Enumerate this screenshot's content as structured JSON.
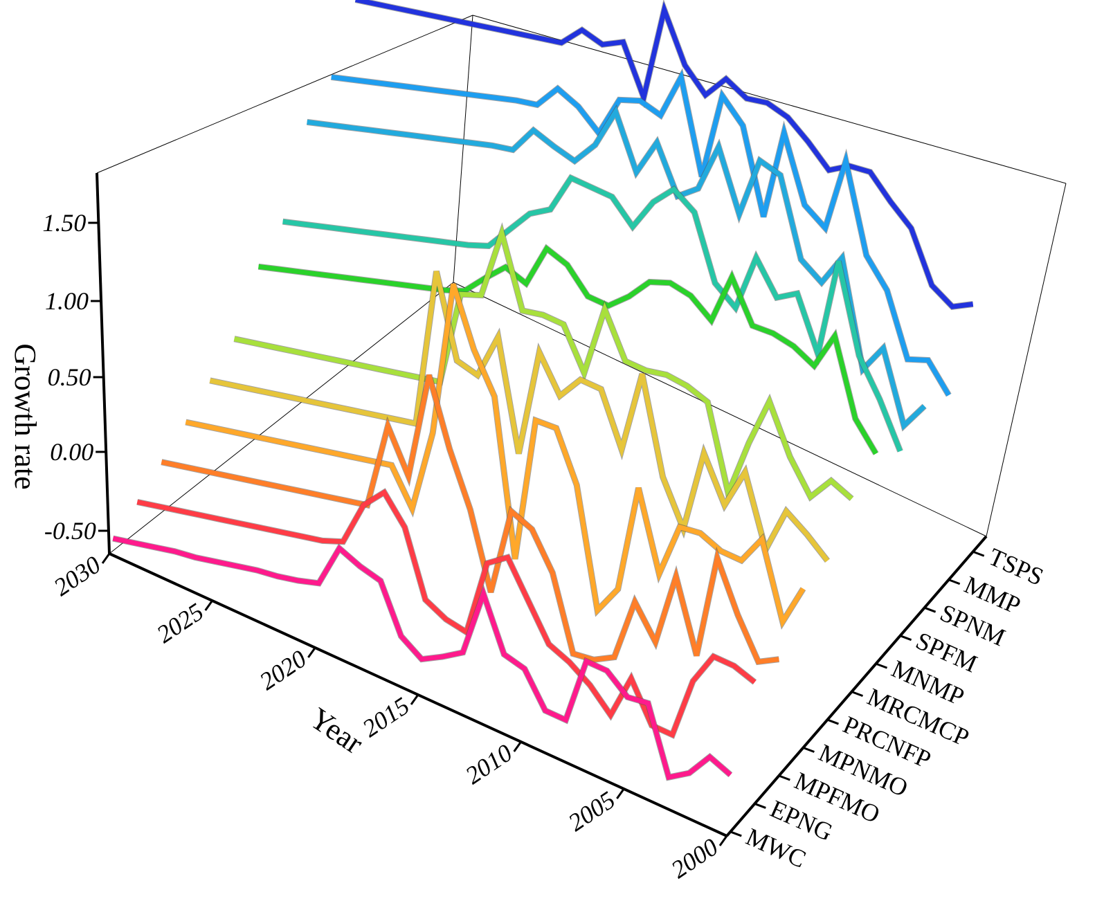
{
  "chart_data": {
    "type": "line",
    "title": "",
    "xlabel": "Year",
    "ylabel": "Growth rate",
    "zlabel": "",
    "x": [
      2000,
      2001,
      2002,
      2003,
      2004,
      2005,
      2006,
      2007,
      2008,
      2009,
      2010,
      2011,
      2012,
      2013,
      2014,
      2015,
      2016,
      2017,
      2018,
      2019,
      2020,
      2021,
      2022,
      2023,
      2024,
      2025,
      2026,
      2027,
      2028,
      2029,
      2030
    ],
    "xlim": [
      2000,
      2030
    ],
    "x_ticks": [
      "2000",
      "2005",
      "2010",
      "2015",
      "2020",
      "2025",
      "2030"
    ],
    "ylim": [
      -0.6,
      1.8
    ],
    "y_ticks": [
      "-0.50",
      "0.00",
      "0.50",
      "1.00",
      "1.50"
    ],
    "categories": [
      "MWC",
      "EPNG",
      "MPFMO",
      "MPNMO",
      "PRCNFP",
      "MRCMCP",
      "MNMP",
      "SPFM",
      "SPNM",
      "MMP",
      "TSPS"
    ],
    "grid": false,
    "series": [
      {
        "name": "MWC",
        "color": "#ff1a8c",
        "values": [
          -0.3,
          -0.25,
          -0.4,
          -0.48,
          -0.1,
          -0.12,
          -0.02,
          -0.02,
          -0.42,
          -0.42,
          -0.23,
          -0.2,
          0.1,
          -0.3,
          -0.38,
          -0.45,
          -0.37,
          -0.1,
          -0.07,
          -0.02,
          -0.28,
          -0.32,
          -0.35,
          -0.37,
          -0.4,
          -0.43,
          -0.46,
          -0.48,
          -0.51,
          -0.54,
          -0.57
        ]
      },
      {
        "name": "EPNG",
        "color": "#ff3c46",
        "values": [
          0.08,
          0.12,
          0.12,
          -0.08,
          -0.45,
          -0.45,
          -0.23,
          -0.5,
          -0.38,
          -0.3,
          -0.25,
          -0.05,
          0.15,
          0.06,
          -0.4,
          -0.38,
          -0.32,
          0.05,
          0.2,
          0.07,
          -0.2,
          -0.25,
          -0.28,
          -0.31,
          -0.34,
          -0.37,
          -0.4,
          -0.43,
          -0.46,
          -0.49,
          -0.52
        ]
      },
      {
        "name": "MPFMO",
        "color": "#ff7e28",
        "values": [
          0.05,
          -0.02,
          0.2,
          0.48,
          -0.15,
          0.26,
          -0.18,
          0.0,
          -0.38,
          -0.45,
          -0.47,
          -0.05,
          0.15,
          0.2,
          -0.33,
          0.1,
          0.4,
          0.78,
          0.13,
          0.37,
          -0.15,
          -0.18,
          -0.21,
          -0.24,
          -0.27,
          -0.3,
          -0.33,
          -0.36,
          -0.39,
          -0.42,
          -0.45
        ]
      },
      {
        "name": "MPNMO",
        "color": "#ffa82a",
        "values": [
          0.3,
          0.05,
          0.48,
          0.3,
          0.3,
          0.35,
          0.33,
          0.0,
          0.45,
          -0.2,
          -0.38,
          0.3,
          0.58,
          0.57,
          -0.3,
          0.6,
          0.82,
          1.15,
          0.22,
          -0.28,
          -0.08,
          -0.11,
          -0.14,
          -0.17,
          -0.2,
          -0.23,
          -0.26,
          -0.29,
          -0.32,
          -0.35,
          -0.38
        ]
      },
      {
        "name": "PRCNFP",
        "color": "#e6c53a",
        "values": [
          0.3,
          0.4,
          0.48,
          0.2,
          0.6,
          0.35,
          0.6,
          0.1,
          0.35,
          0.9,
          0.4,
          0.7,
          0.7,
          0.55,
          0.75,
          0.1,
          0.73,
          0.45,
          0.48,
          0.95,
          0.0,
          -0.03,
          -0.06,
          -0.09,
          -0.12,
          -0.15,
          -0.18,
          -0.21,
          -0.24,
          -0.27,
          -0.3
        ]
      },
      {
        "name": "MRCMCP",
        "color": "#a8e03c",
        "values": [
          0.5,
          0.55,
          0.4,
          0.58,
          0.85,
          0.55,
          0.2,
          0.68,
          0.72,
          0.73,
          0.7,
          0.7,
          0.95,
          0.52,
          0.75,
          0.75,
          0.72,
          1.12,
          0.7,
          0.65,
          0.08,
          0.05,
          0.02,
          -0.01,
          -0.04,
          -0.07,
          -0.1,
          -0.13,
          -0.16,
          -0.19,
          -0.22
        ]
      },
      {
        "name": "MNMP",
        "color": "#2ad22a",
        "values": [
          0.6,
          0.75,
          1.18,
          0.95,
          1.01,
          1.03,
          1.02,
          1.25,
          0.94,
          1.03,
          1.05,
          1.0,
          0.86,
          0.75,
          0.75,
          0.88,
          0.92,
          0.66,
          0.7,
          0.58,
          0.45,
          0.4,
          0.36,
          0.32,
          0.28,
          0.24,
          0.2,
          0.16,
          0.12,
          0.08,
          0.04
        ]
      },
      {
        "name": "SPFM",
        "color": "#26c6a6",
        "values": [
          0.45,
          0.7,
          0.9,
          1.4,
          0.8,
          1.1,
          1.02,
          1.2,
          0.85,
          0.94,
          1.3,
          1.38,
          1.25,
          1.05,
          1.17,
          1.17,
          1.17,
          0.93,
          0.85,
          0.7,
          0.55,
          0.5,
          0.46,
          0.42,
          0.38,
          0.34,
          0.3,
          0.26,
          0.22,
          0.18,
          0.14
        ]
      },
      {
        "name": "SPNM",
        "color": "#22aadd",
        "values": [
          0.55,
          0.38,
          0.78,
          0.6,
          1.2,
          1.0,
          1.08,
          1.52,
          1.55,
          1.18,
          1.52,
          1.22,
          1.12,
          1.38,
          1.15,
          1.45,
          1.2,
          1.05,
          1.08,
          1.12,
          0.95,
          0.92,
          0.88,
          0.84,
          0.8,
          0.76,
          0.72,
          0.68,
          0.64,
          0.6,
          0.56
        ]
      },
      {
        "name": "MMP",
        "color": "#1e9ef0",
        "values": [
          0.45,
          0.6,
          0.55,
          0.9,
          1.05,
          1.55,
          1.1,
          1.18,
          1.55,
          1.0,
          1.48,
          1.6,
          1.07,
          1.6,
          1.32,
          1.35,
          1.3,
          1.05,
          1.15,
          1.2,
          1.05,
          1.02,
          0.98,
          0.94,
          0.9,
          0.86,
          0.82,
          0.78,
          0.74,
          0.7,
          0.66
        ]
      },
      {
        "name": "TSPS",
        "color": "#2233dd",
        "values": [
          0.82,
          0.75,
          0.82,
          1.1,
          1.2,
          1.32,
          1.3,
          1.22,
          1.33,
          1.42,
          1.45,
          1.42,
          1.48,
          1.33,
          1.45,
          1.72,
          1.15,
          1.42,
          1.35,
          1.38,
          1.25,
          1.22,
          1.19,
          1.16,
          1.13,
          1.1,
          1.07,
          1.04,
          1.01,
          0.98,
          0.95
        ]
      }
    ]
  }
}
